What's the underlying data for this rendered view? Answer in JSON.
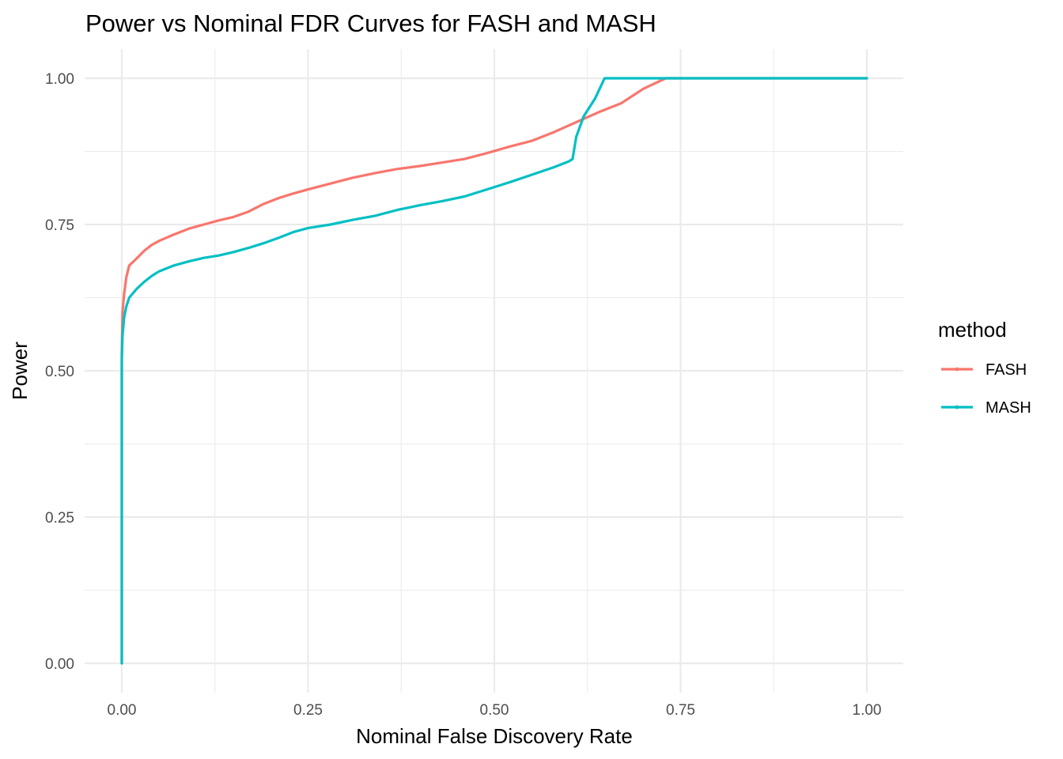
{
  "chart_data": {
    "type": "line",
    "title": "Power vs Nominal FDR Curves for FASH and MASH",
    "xlabel": "Nominal False Discovery Rate",
    "ylabel": "Power",
    "xlim": [
      0,
      1
    ],
    "ylim": [
      0,
      1
    ],
    "x_ticks": [
      "0.00",
      "0.25",
      "0.50",
      "0.75",
      "1.00"
    ],
    "y_ticks": [
      "0.00",
      "0.25",
      "0.50",
      "0.75",
      "1.00"
    ],
    "grid": true,
    "legend": {
      "title": "method",
      "placement": "right"
    },
    "series": [
      {
        "name": "FASH",
        "color": "#F8766D",
        "points": [
          [
            0.0,
            0.0
          ],
          [
            0.0,
            0.53
          ],
          [
            0.001,
            0.6
          ],
          [
            0.003,
            0.63
          ],
          [
            0.006,
            0.66
          ],
          [
            0.01,
            0.68
          ],
          [
            0.02,
            0.692
          ],
          [
            0.03,
            0.705
          ],
          [
            0.04,
            0.715
          ],
          [
            0.05,
            0.722
          ],
          [
            0.07,
            0.733
          ],
          [
            0.09,
            0.743
          ],
          [
            0.11,
            0.75
          ],
          [
            0.13,
            0.757
          ],
          [
            0.15,
            0.763
          ],
          [
            0.17,
            0.772
          ],
          [
            0.19,
            0.785
          ],
          [
            0.21,
            0.795
          ],
          [
            0.23,
            0.803
          ],
          [
            0.25,
            0.81
          ],
          [
            0.28,
            0.82
          ],
          [
            0.31,
            0.83
          ],
          [
            0.34,
            0.838
          ],
          [
            0.37,
            0.845
          ],
          [
            0.4,
            0.85
          ],
          [
            0.43,
            0.856
          ],
          [
            0.46,
            0.862
          ],
          [
            0.49,
            0.872
          ],
          [
            0.52,
            0.883
          ],
          [
            0.55,
            0.893
          ],
          [
            0.58,
            0.908
          ],
          [
            0.61,
            0.925
          ],
          [
            0.64,
            0.942
          ],
          [
            0.67,
            0.957
          ],
          [
            0.7,
            0.982
          ],
          [
            0.73,
            1.0
          ],
          [
            1.0,
            1.0
          ]
        ]
      },
      {
        "name": "MASH",
        "color": "#00BFC4",
        "points": [
          [
            0.0,
            0.0
          ],
          [
            0.0,
            0.52
          ],
          [
            0.001,
            0.56
          ],
          [
            0.003,
            0.59
          ],
          [
            0.006,
            0.61
          ],
          [
            0.01,
            0.625
          ],
          [
            0.02,
            0.64
          ],
          [
            0.03,
            0.652
          ],
          [
            0.04,
            0.662
          ],
          [
            0.05,
            0.67
          ],
          [
            0.07,
            0.68
          ],
          [
            0.09,
            0.687
          ],
          [
            0.11,
            0.693
          ],
          [
            0.13,
            0.697
          ],
          [
            0.15,
            0.703
          ],
          [
            0.17,
            0.71
          ],
          [
            0.19,
            0.718
          ],
          [
            0.21,
            0.727
          ],
          [
            0.23,
            0.737
          ],
          [
            0.25,
            0.744
          ],
          [
            0.28,
            0.75
          ],
          [
            0.31,
            0.758
          ],
          [
            0.34,
            0.765
          ],
          [
            0.37,
            0.775
          ],
          [
            0.4,
            0.783
          ],
          [
            0.43,
            0.79
          ],
          [
            0.46,
            0.798
          ],
          [
            0.49,
            0.81
          ],
          [
            0.52,
            0.822
          ],
          [
            0.55,
            0.835
          ],
          [
            0.58,
            0.848
          ],
          [
            0.6,
            0.858
          ],
          [
            0.605,
            0.862
          ],
          [
            0.61,
            0.9
          ],
          [
            0.62,
            0.935
          ],
          [
            0.635,
            0.965
          ],
          [
            0.648,
            1.0
          ],
          [
            1.0,
            1.0
          ]
        ]
      }
    ]
  }
}
